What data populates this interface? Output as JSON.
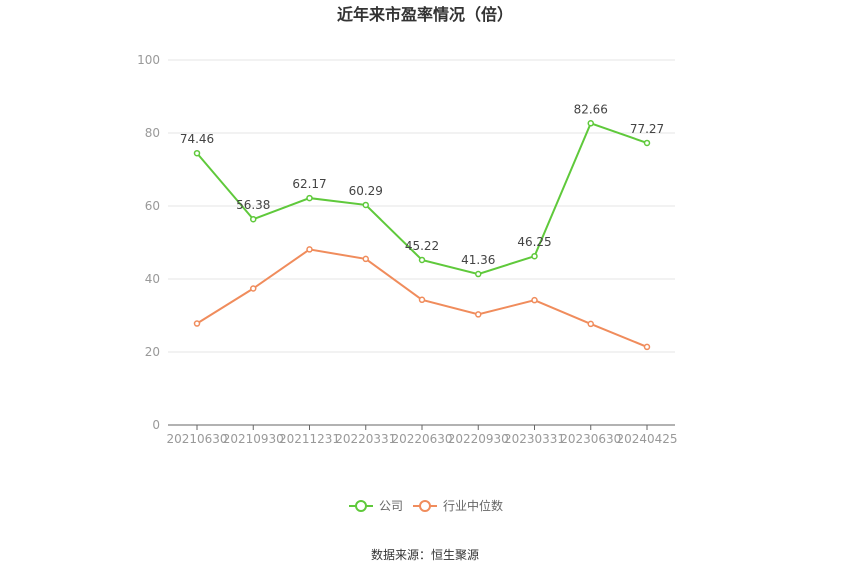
{
  "chart_data": {
    "type": "line",
    "title": "近年来市盈率情况（倍）",
    "xlabel": "",
    "ylabel": "",
    "ylim": [
      0,
      100
    ],
    "yticks": [
      0,
      20,
      40,
      60,
      80,
      100
    ],
    "grid": true,
    "legend_position": "bottom",
    "categories": [
      "20210630",
      "20210930",
      "20211231",
      "20220331",
      "20220630",
      "20220930",
      "20230331",
      "20230630",
      "20240425"
    ],
    "series": [
      {
        "name": "公司",
        "color": "#5fc93b",
        "values": [
          74.46,
          56.38,
          62.17,
          60.29,
          45.22,
          41.36,
          46.25,
          82.66,
          77.27
        ],
        "labels": [
          "74.46",
          "56.38",
          "62.17",
          "60.29",
          "45.22",
          "41.36",
          "46.25",
          "82.66",
          "77.27"
        ]
      },
      {
        "name": "行业中位数",
        "color": "#f08c5c",
        "values": [
          27.8,
          37.4,
          48.1,
          45.5,
          34.3,
          30.3,
          34.2,
          27.7,
          21.4
        ]
      }
    ],
    "source": "数据来源：恒生聚源"
  }
}
